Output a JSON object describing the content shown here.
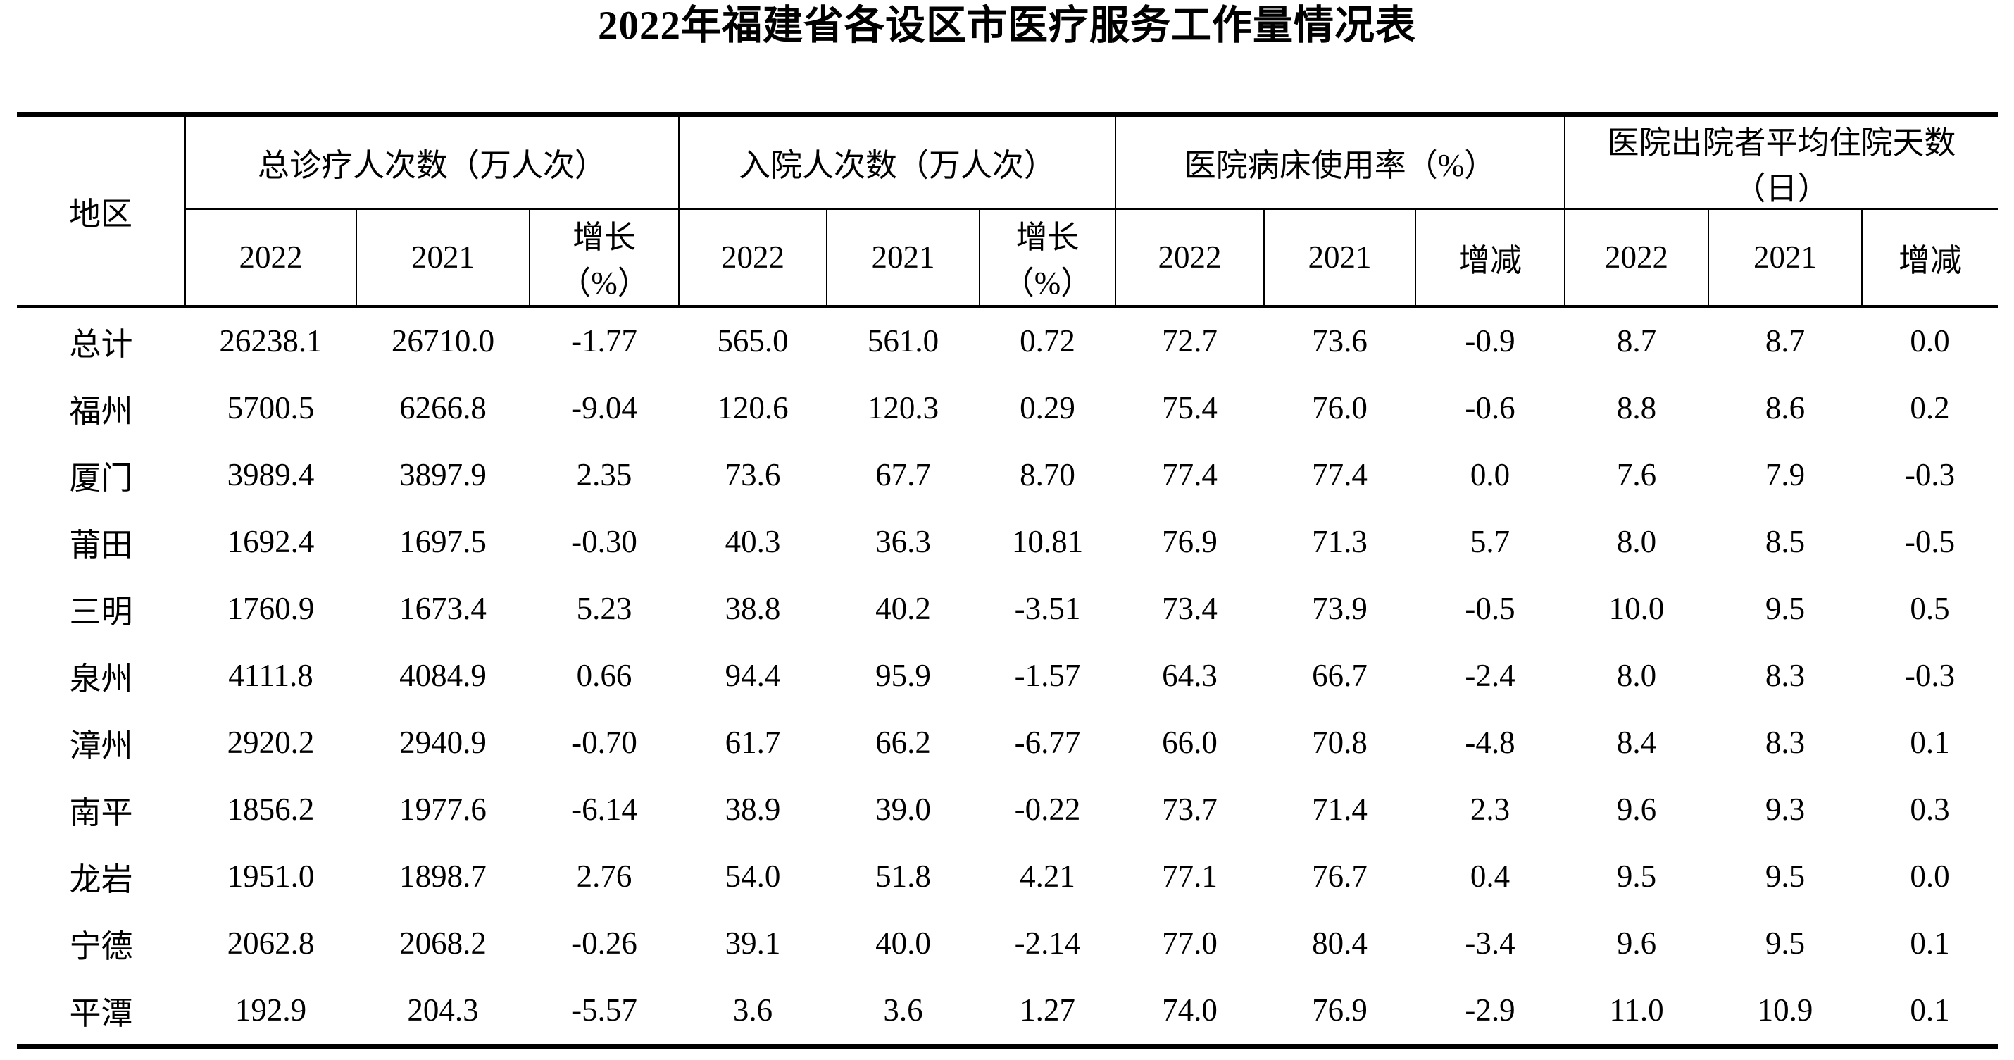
{
  "title": "2022年福建省各设区市医疗服务工作量情况表",
  "colors": {
    "text": "#000000",
    "background": "#ffffff",
    "rules": "#000000"
  },
  "table": {
    "region_header": "地区",
    "groups": [
      {
        "label": "总诊疗人次数（万人次）",
        "cols": [
          "2022",
          "2021",
          "增长\n（%）"
        ]
      },
      {
        "label": "入院人次数（万人次）",
        "cols": [
          "2022",
          "2021",
          "增长\n（%）"
        ]
      },
      {
        "label": "医院病床使用率（%）",
        "cols": [
          "2022",
          "2021",
          "增减"
        ]
      },
      {
        "label": "医院出院者平均住院天数\n（日）",
        "cols": [
          "2022",
          "2021",
          "增减"
        ]
      }
    ],
    "rows": [
      {
        "region": "总计",
        "values": [
          "26238.1",
          "26710.0",
          "-1.77",
          "565.0",
          "561.0",
          "0.72",
          "72.7",
          "73.6",
          "-0.9",
          "8.7",
          "8.7",
          "0.0"
        ]
      },
      {
        "region": "福州",
        "values": [
          "5700.5",
          "6266.8",
          "-9.04",
          "120.6",
          "120.3",
          "0.29",
          "75.4",
          "76.0",
          "-0.6",
          "8.8",
          "8.6",
          "0.2"
        ]
      },
      {
        "region": "厦门",
        "values": [
          "3989.4",
          "3897.9",
          "2.35",
          "73.6",
          "67.7",
          "8.70",
          "77.4",
          "77.4",
          "0.0",
          "7.6",
          "7.9",
          "-0.3"
        ]
      },
      {
        "region": "莆田",
        "values": [
          "1692.4",
          "1697.5",
          "-0.30",
          "40.3",
          "36.3",
          "10.81",
          "76.9",
          "71.3",
          "5.7",
          "8.0",
          "8.5",
          "-0.5"
        ]
      },
      {
        "region": "三明",
        "values": [
          "1760.9",
          "1673.4",
          "5.23",
          "38.8",
          "40.2",
          "-3.51",
          "73.4",
          "73.9",
          "-0.5",
          "10.0",
          "9.5",
          "0.5"
        ]
      },
      {
        "region": "泉州",
        "values": [
          "4111.8",
          "4084.9",
          "0.66",
          "94.4",
          "95.9",
          "-1.57",
          "64.3",
          "66.7",
          "-2.4",
          "8.0",
          "8.3",
          "-0.3"
        ]
      },
      {
        "region": "漳州",
        "values": [
          "2920.2",
          "2940.9",
          "-0.70",
          "61.7",
          "66.2",
          "-6.77",
          "66.0",
          "70.8",
          "-4.8",
          "8.4",
          "8.3",
          "0.1"
        ]
      },
      {
        "region": "南平",
        "values": [
          "1856.2",
          "1977.6",
          "-6.14",
          "38.9",
          "39.0",
          "-0.22",
          "73.7",
          "71.4",
          "2.3",
          "9.6",
          "9.3",
          "0.3"
        ]
      },
      {
        "region": "龙岩",
        "values": [
          "1951.0",
          "1898.7",
          "2.76",
          "54.0",
          "51.8",
          "4.21",
          "77.1",
          "76.7",
          "0.4",
          "9.5",
          "9.5",
          "0.0"
        ]
      },
      {
        "region": "宁德",
        "values": [
          "2062.8",
          "2068.2",
          "-0.26",
          "39.1",
          "40.0",
          "-2.14",
          "77.0",
          "80.4",
          "-3.4",
          "9.6",
          "9.5",
          "0.1"
        ]
      },
      {
        "region": "平潭",
        "values": [
          "192.9",
          "204.3",
          "-5.57",
          "3.6",
          "3.6",
          "1.27",
          "74.0",
          "76.9",
          "-2.9",
          "11.0",
          "10.9",
          "0.1"
        ]
      }
    ]
  }
}
